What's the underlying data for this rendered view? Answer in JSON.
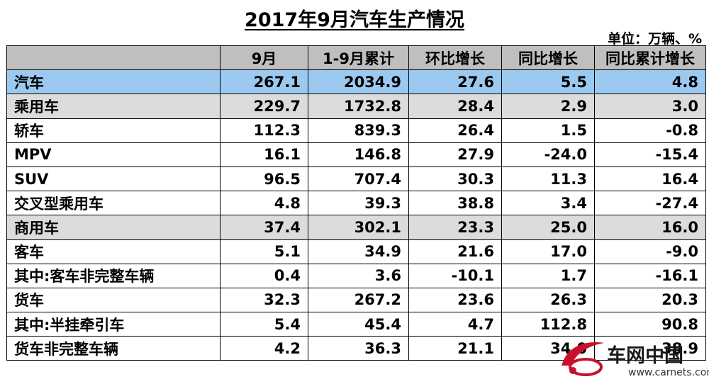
{
  "title": "2017年9月汽车生产情况",
  "unit": "单位：万辆、%",
  "columns": [
    "",
    "9月",
    "1-9月累计",
    "环比增长",
    "同比增长",
    "同比累计增长"
  ],
  "rows": [
    {
      "label": "汽车",
      "level": 0,
      "values": [
        "267.1",
        "2034.9",
        "27.6",
        "5.5",
        "4.8"
      ]
    },
    {
      "label": "乘用车",
      "level": 1,
      "values": [
        "229.7",
        "1732.8",
        "28.4",
        "2.9",
        "3.0"
      ]
    },
    {
      "label": "轿车",
      "level": 2,
      "values": [
        "112.3",
        "839.3",
        "26.4",
        "1.5",
        "-0.8"
      ]
    },
    {
      "label": "MPV",
      "level": 2,
      "values": [
        "16.1",
        "146.8",
        "27.9",
        "-24.0",
        "-15.4"
      ]
    },
    {
      "label": "SUV",
      "level": 2,
      "values": [
        "96.5",
        "707.4",
        "30.3",
        "11.3",
        "16.4"
      ]
    },
    {
      "label": "交叉型乘用车",
      "level": 2,
      "values": [
        "4.8",
        "39.3",
        "38.8",
        "3.4",
        "-27.4"
      ]
    },
    {
      "label": "商用车",
      "level": 1,
      "values": [
        "37.4",
        "302.1",
        "23.3",
        "25.0",
        "16.0"
      ]
    },
    {
      "label": "客车",
      "level": 2,
      "values": [
        "5.1",
        "34.9",
        "21.6",
        "17.0",
        "-9.0"
      ]
    },
    {
      "label": "其中:客车非完整车辆",
      "level": 3,
      "values": [
        "0.4",
        "3.6",
        "-10.1",
        "1.7",
        "-16.1"
      ]
    },
    {
      "label": "货车",
      "level": 2,
      "values": [
        "32.3",
        "267.2",
        "23.6",
        "26.3",
        "20.3"
      ]
    },
    {
      "label": "其中:半挂牵引车",
      "level": 3,
      "values": [
        "5.4",
        "45.4",
        "4.7",
        "112.8",
        "90.8"
      ]
    },
    {
      "label": "货车非完整车辆",
      "level": 3,
      "values": [
        "4.2",
        "36.3",
        "21.1",
        "34.0",
        "38.9"
      ]
    }
  ],
  "watermark": {
    "name": "车网中国",
    "url": "www.carnets.com"
  }
}
